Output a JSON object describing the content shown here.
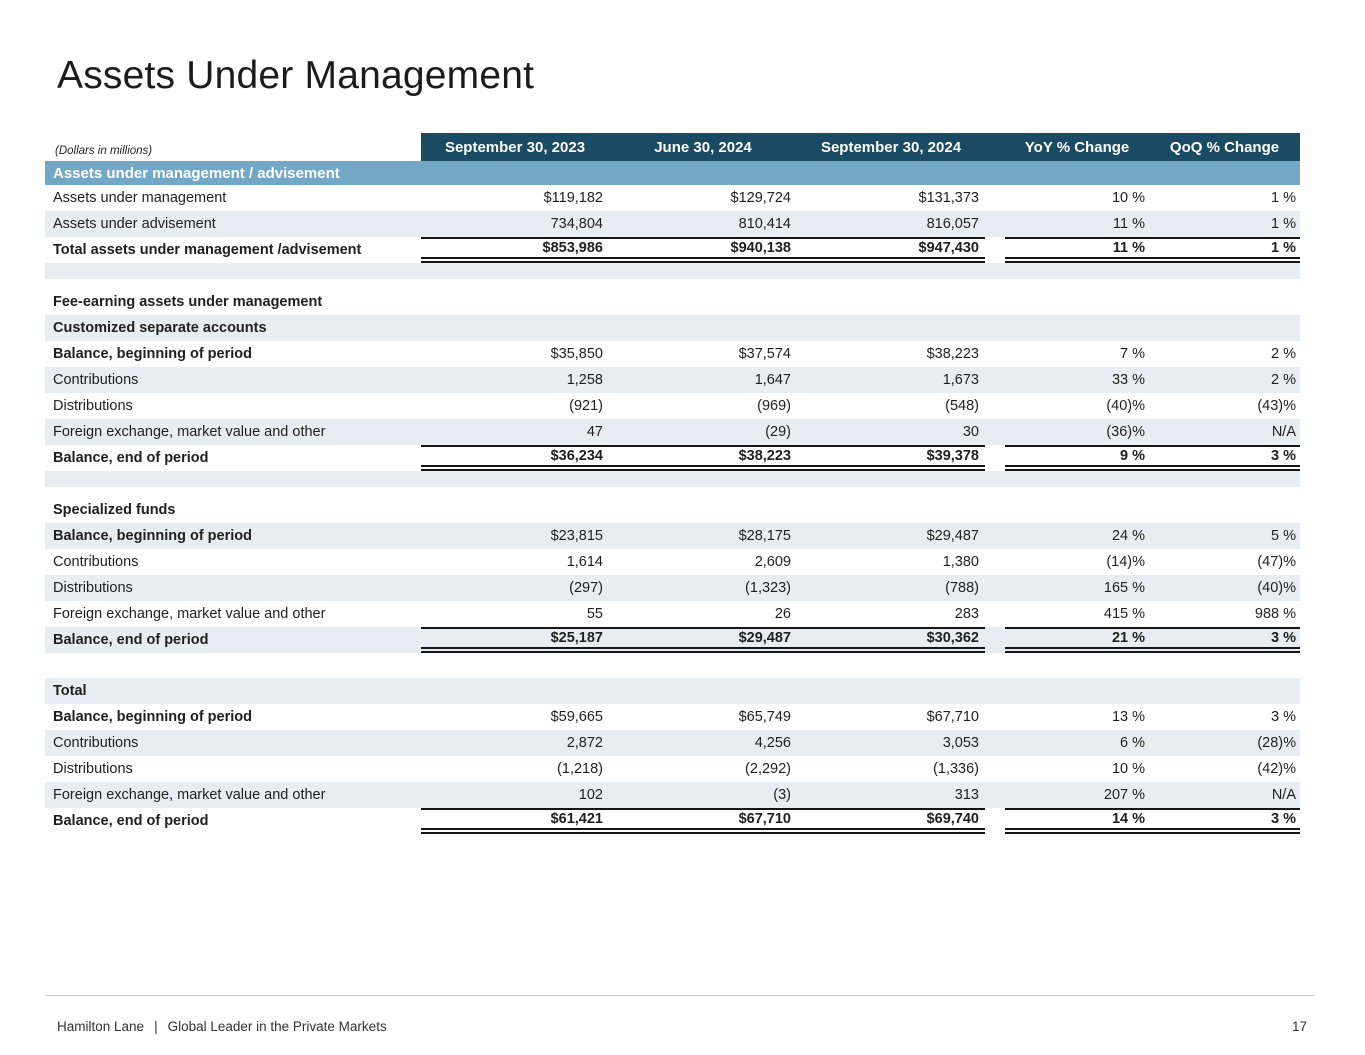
{
  "page": {
    "title": "Assets Under Management"
  },
  "colors": {
    "header_bg": "#1B4A63",
    "band_bg": "#72A7C6",
    "stripe_bg": "#E7EDF2",
    "line_color": "#151515"
  },
  "table": {
    "units_note": "(Dollars in millions)",
    "columns": [
      "September 30, 2023",
      "June 30, 2024",
      "September 30, 2024",
      "YoY % Change",
      "QoQ % Change"
    ],
    "rows": [
      {
        "type": "band",
        "label": "Assets under management / advisement"
      },
      {
        "type": "data",
        "bg": "white",
        "label": "Assets under management",
        "values": [
          "$119,182",
          "$129,724",
          "$131,373",
          "10 %",
          "1 %"
        ]
      },
      {
        "type": "data",
        "bg": "stripe",
        "label": "Assets under advisement",
        "values": [
          "734,804",
          "810,414",
          "816,057",
          "11 %",
          "1 %"
        ]
      },
      {
        "type": "grand",
        "bg": "white",
        "label": "Total assets under management /advisement",
        "values": [
          "$853,986",
          "$940,138",
          "$947,430",
          "11 %",
          "1 %"
        ]
      },
      {
        "type": "spacer",
        "bg": "stripe",
        "height": 16
      },
      {
        "type": "spacer",
        "bg": "white",
        "height": 10
      },
      {
        "type": "section",
        "bg": "white",
        "label": "Fee-earning assets under management"
      },
      {
        "type": "section",
        "bg": "stripe",
        "label": "Customized separate accounts"
      },
      {
        "type": "data",
        "bg": "white",
        "bold_label": true,
        "label": "Balance, beginning of period",
        "values": [
          "$35,850",
          "$37,574",
          "$38,223",
          "7 %",
          "2 %"
        ]
      },
      {
        "type": "data",
        "bg": "stripe",
        "label": "Contributions",
        "values": [
          "1,258",
          "1,647",
          "1,673",
          "33 %",
          "2 %"
        ]
      },
      {
        "type": "data",
        "bg": "white",
        "label": "Distributions",
        "values": [
          "(921)",
          "(969)",
          "(548)",
          "(40)%",
          "(43)%"
        ]
      },
      {
        "type": "data",
        "bg": "stripe",
        "label": "Foreign exchange, market value and other",
        "values": [
          "47",
          "(29)",
          "30",
          "(36)%",
          "N/A"
        ]
      },
      {
        "type": "grand",
        "bg": "white",
        "label": "Balance, end of period",
        "values": [
          "$36,234",
          "$38,223",
          "$39,378",
          "9 %",
          "3 %"
        ]
      },
      {
        "type": "spacer",
        "bg": "stripe",
        "height": 16
      },
      {
        "type": "spacer",
        "bg": "white",
        "height": 10
      },
      {
        "type": "section",
        "bg": "white",
        "label": "Specialized funds"
      },
      {
        "type": "data",
        "bg": "stripe",
        "bold_label": true,
        "label": "Balance, beginning of period",
        "values": [
          "$23,815",
          "$28,175",
          "$29,487",
          "24 %",
          "5 %"
        ]
      },
      {
        "type": "data",
        "bg": "white",
        "label": "Contributions",
        "values": [
          "1,614",
          "2,609",
          "1,380",
          "(14)%",
          "(47)%"
        ]
      },
      {
        "type": "data",
        "bg": "stripe",
        "label": "Distributions",
        "values": [
          "(297)",
          "(1,323)",
          "(788)",
          "165 %",
          "(40)%"
        ]
      },
      {
        "type": "data",
        "bg": "white",
        "label": "Foreign exchange, market value and other",
        "values": [
          "55",
          "26",
          "283",
          "415 %",
          "988 %"
        ]
      },
      {
        "type": "grand",
        "bg": "stripe",
        "label": "Balance, end of period",
        "values": [
          "$25,187",
          "$29,487",
          "$30,362",
          "21 %",
          "3 %"
        ]
      },
      {
        "type": "spacer",
        "bg": "white",
        "height": 25
      },
      {
        "type": "section",
        "bg": "stripe",
        "label": "Total"
      },
      {
        "type": "data",
        "bg": "white",
        "bold_label": true,
        "label": "Balance, beginning of period",
        "values": [
          "$59,665",
          "$65,749",
          "$67,710",
          "13 %",
          "3 %"
        ]
      },
      {
        "type": "data",
        "bg": "stripe",
        "label": "Contributions",
        "values": [
          "2,872",
          "4,256",
          "3,053",
          "6 %",
          "(28)%"
        ]
      },
      {
        "type": "data",
        "bg": "white",
        "label": "Distributions",
        "values": [
          "(1,218)",
          "(2,292)",
          "(1,336)",
          "10 %",
          "(42)%"
        ]
      },
      {
        "type": "data",
        "bg": "stripe",
        "label": "Foreign exchange, market value and other",
        "values": [
          "102",
          "(3)",
          "313",
          "207 %",
          "N/A"
        ]
      },
      {
        "type": "grand",
        "bg": "white",
        "label": "Balance, end of period",
        "values": [
          "$61,421",
          "$67,710",
          "$69,740",
          "14 %",
          "3 %"
        ]
      }
    ]
  },
  "footer": {
    "brand": "Hamilton Lane",
    "separator": "|",
    "tagline": "Global Leader in the Private Markets",
    "page_number": "17"
  }
}
